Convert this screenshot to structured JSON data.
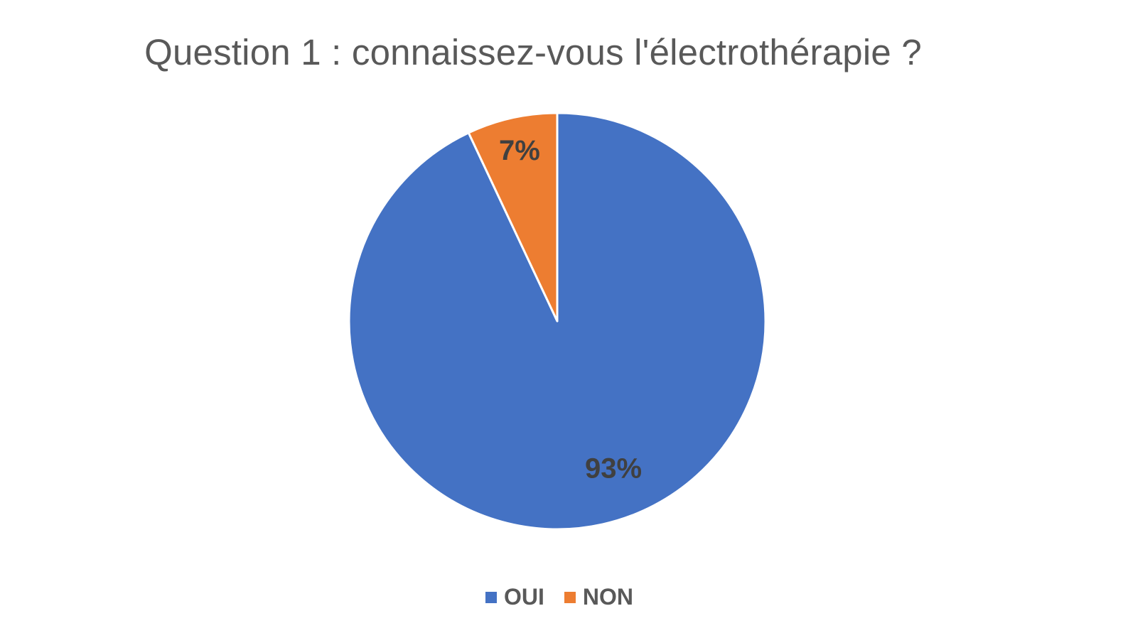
{
  "chart_data": {
    "type": "pie",
    "title": "Question 1 : connaissez-vous l'électrothérapie ?",
    "categories": [
      "OUI",
      "NON"
    ],
    "values": [
      93,
      7
    ],
    "data_labels": [
      "93%",
      "7%"
    ],
    "colors": [
      "#4472C4",
      "#ED7D31"
    ],
    "legend_position": "bottom"
  }
}
